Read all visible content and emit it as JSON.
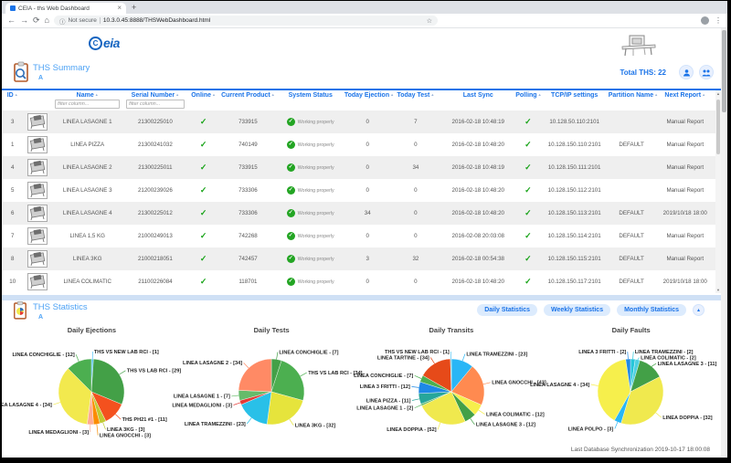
{
  "browser": {
    "tab_title": "CEIA - ths Web Dashboard",
    "url_security": "Not secure",
    "url": "10.3.0.45:8888/THSWebDashboard.html"
  },
  "icons": {
    "back": "←",
    "forward": "→",
    "reload": "⟳",
    "home": "⌂",
    "info": "ⓘ",
    "star": "☆",
    "menu": "⋮",
    "tab_close": "×",
    "new_tab": "+",
    "sort_caret": "▲",
    "check": "✓",
    "collapse": "▴",
    "scroll_up": "▲",
    "scroll_down": "▼"
  },
  "header": {
    "logo_badge": "C",
    "logo_text": "eia",
    "total_ths_label": "Total THS:",
    "total_ths_value": "22"
  },
  "summary": {
    "title": "THS Summary",
    "subtitle_link": "A"
  },
  "table": {
    "filter_placeholder": "filter column...",
    "status_label": "Working properly",
    "headers": [
      {
        "label": "ID",
        "sort": true
      },
      {
        "label": "",
        "sort": false
      },
      {
        "label": "Name",
        "sort": true
      },
      {
        "label": "Serial Number",
        "sort": true
      },
      {
        "label": "Online",
        "sort": true
      },
      {
        "label": "Current Product",
        "sort": true
      },
      {
        "label": "System Status",
        "sort": false
      },
      {
        "label": "Today Ejection",
        "sort": true
      },
      {
        "label": "Today Test",
        "sort": true
      },
      {
        "label": "Last Sync",
        "sort": false
      },
      {
        "label": "Polling",
        "sort": true
      },
      {
        "label": "TCP/IP settings",
        "sort": false
      },
      {
        "label": "Partition Name",
        "sort": true
      },
      {
        "label": "Next Report",
        "sort": true
      }
    ],
    "rows": [
      {
        "id": "3",
        "name": "LINEA LASAGNE 1",
        "serial": "21300225010",
        "online": true,
        "product": "733915",
        "status": "Working properly",
        "ejection": "0",
        "test": "7",
        "last_sync": "2016-02-18 10:48:19",
        "polling": true,
        "tcpip": "10.128.50.110:2101",
        "partition": "",
        "next_report": "Manual Report"
      },
      {
        "id": "1",
        "name": "LINEA PIZZA",
        "serial": "21300241032",
        "online": true,
        "product": "740149",
        "status": "Working properly",
        "ejection": "0",
        "test": "0",
        "last_sync": "2016-02-18 10:48:20",
        "polling": true,
        "tcpip": "10.128.150.110:2101",
        "partition": "DEFAULT",
        "next_report": "Manual Report"
      },
      {
        "id": "4",
        "name": "LINEA LASAGNE 2",
        "serial": "21300225011",
        "online": true,
        "product": "733915",
        "status": "Working properly",
        "ejection": "0",
        "test": "34",
        "last_sync": "2016-02-18 10:48:19",
        "polling": true,
        "tcpip": "10.128.150.111:2101",
        "partition": "",
        "next_report": "Manual Report"
      },
      {
        "id": "5",
        "name": "LINEA LASAGNE 3",
        "serial": "21200239026",
        "online": true,
        "product": "733306",
        "status": "Working properly",
        "ejection": "0",
        "test": "0",
        "last_sync": "2016-02-18 10:48:20",
        "polling": true,
        "tcpip": "10.128.150.112:2101",
        "partition": "",
        "next_report": "Manual Report"
      },
      {
        "id": "6",
        "name": "LINEA LASAGNE 4",
        "serial": "21300225012",
        "online": true,
        "product": "733306",
        "status": "Working properly",
        "ejection": "34",
        "test": "0",
        "last_sync": "2016-02-18 10:48:20",
        "polling": true,
        "tcpip": "10.128.150.113:2101",
        "partition": "DEFAULT",
        "next_report": "2019/10/18 18:00"
      },
      {
        "id": "7",
        "name": "LINEA 1,5 KG",
        "serial": "21000249013",
        "online": true,
        "product": "742268",
        "status": "Working properly",
        "ejection": "0",
        "test": "0",
        "last_sync": "2016-02-08 20:03:08",
        "polling": true,
        "tcpip": "10.128.150.114:2101",
        "partition": "DEFAULT",
        "next_report": "Manual Report"
      },
      {
        "id": "8",
        "name": "LINEA 3KG",
        "serial": "21000218051",
        "online": true,
        "product": "742457",
        "status": "Working properly",
        "ejection": "3",
        "test": "32",
        "last_sync": "2016-02-18 00:54:38",
        "polling": true,
        "tcpip": "10.128.150.115:2101",
        "partition": "DEFAULT",
        "next_report": "Manual Report"
      },
      {
        "id": "10",
        "name": "LINEA COLIMATIC",
        "serial": "21100226084",
        "online": true,
        "product": "118701",
        "status": "Working properly",
        "ejection": "0",
        "test": "0",
        "last_sync": "2016-02-18 10:48:20",
        "polling": true,
        "tcpip": "10.128.150.117:2101",
        "partition": "DEFAULT",
        "next_report": "2019/10/18 18:00"
      }
    ]
  },
  "statistics": {
    "title": "THS Statistics",
    "subtitle_link": "A",
    "buttons": {
      "daily": "Daily Statistics",
      "weekly": "Weekly Statistics",
      "monthly": "Monthly Statistics"
    }
  },
  "footer": {
    "sync_text": "Last Database Synchronization 2019-10-17 18:00:08"
  },
  "chart_data": [
    {
      "type": "pie",
      "title": "Daily Ejections",
      "legend_position": "around",
      "slices": [
        {
          "label": "THS VS NEW LAB RCI",
          "value": 1,
          "color": "#4fc3f7"
        },
        {
          "label": "THS VS LAB RCI",
          "value": 29,
          "color": "#43a047"
        },
        {
          "label": "THS PH21 #1",
          "value": 11,
          "color": "#f4511e"
        },
        {
          "label": "LINEA 3KG",
          "value": 3,
          "color": "#c0ca33"
        },
        {
          "label": "LINEA GNOCCHI",
          "value": 3,
          "color": "#fb8c00"
        },
        {
          "label": "LINEA MEDAGLIONI",
          "value": 3,
          "color": "#ffab91"
        },
        {
          "label": "LINEA LASAGNE 4",
          "value": 34,
          "color": "#f2e94e"
        },
        {
          "label": "LINEA CONCHIGLIE",
          "value": 12,
          "color": "#4caf50"
        }
      ]
    },
    {
      "type": "pie",
      "title": "Daily Tests",
      "legend_position": "around",
      "slices": [
        {
          "label": "LINEA CONCHIGLIE",
          "value": 7,
          "color": "#43a047"
        },
        {
          "label": "THS VS LAB RCI",
          "value": 34,
          "color": "#4caf50"
        },
        {
          "label": "LINEA 3KG",
          "value": 32,
          "color": "#e6e43c"
        },
        {
          "label": "LINEA TRAMEZZINI",
          "value": 23,
          "color": "#29c0e8"
        },
        {
          "label": "LINEA MEDAGLIONI",
          "value": 3,
          "color": "#e53935"
        },
        {
          "label": "LINEA LASAGNE 1",
          "value": 7,
          "color": "#66bb6a"
        },
        {
          "label": "LINEA LASAGNE 2",
          "value": 34,
          "color": "#ff8a65"
        }
      ]
    },
    {
      "type": "pie",
      "title": "Daily Transits",
      "legend_position": "around",
      "slices": [
        {
          "label": "LINEA TRAMEZZINI",
          "value": 23,
          "color": "#29b6f6"
        },
        {
          "label": "LINEA GNOCCHI",
          "value": 43,
          "color": "#ff8a50"
        },
        {
          "label": "LINEA COLIMATIC",
          "value": 12,
          "color": "#f6ef4c"
        },
        {
          "label": "LINEA LASAGNE 3",
          "value": 12,
          "color": "#43a047"
        },
        {
          "label": "LINEA DOPPIA",
          "value": 52,
          "color": "#f0e94e"
        },
        {
          "label": "LINEA LASAGNE 1",
          "value": 2,
          "color": "#66bb6a"
        },
        {
          "label": "LINEA PIZZA",
          "value": 11,
          "color": "#26a69a"
        },
        {
          "label": "LINEA 3 FRITTI",
          "value": 12,
          "color": "#1e88e5"
        },
        {
          "label": "LINEA CONCHIGLIE",
          "value": 7,
          "color": "#4caf50"
        },
        {
          "label": "LINEA TARTINE",
          "value": 34,
          "color": "#e64a19"
        },
        {
          "label": "THS VS NEW LAB RCI",
          "value": 1,
          "color": "#4fc3f7"
        }
      ]
    },
    {
      "type": "pie",
      "title": "Daily Faults",
      "legend_position": "around",
      "slices": [
        {
          "label": "LINEA TRAMEZZINI",
          "value": 2,
          "color": "#26c6da"
        },
        {
          "label": "LINEA COLIMATIC",
          "value": 2,
          "color": "#4dd0e1"
        },
        {
          "label": "LINEA LASAGNE 3",
          "value": 11,
          "color": "#43a047"
        },
        {
          "label": "LINEA DOPPIA",
          "value": 32,
          "color": "#f0e94e"
        },
        {
          "label": "LINEA POLPO",
          "value": 3,
          "color": "#29b6f6"
        },
        {
          "label": "LINEA LASAGNE 4",
          "value": 34,
          "color": "#f6ef4c"
        },
        {
          "label": "LINEA 3 FRITTI",
          "value": 2,
          "color": "#1e88e5"
        }
      ]
    }
  ]
}
